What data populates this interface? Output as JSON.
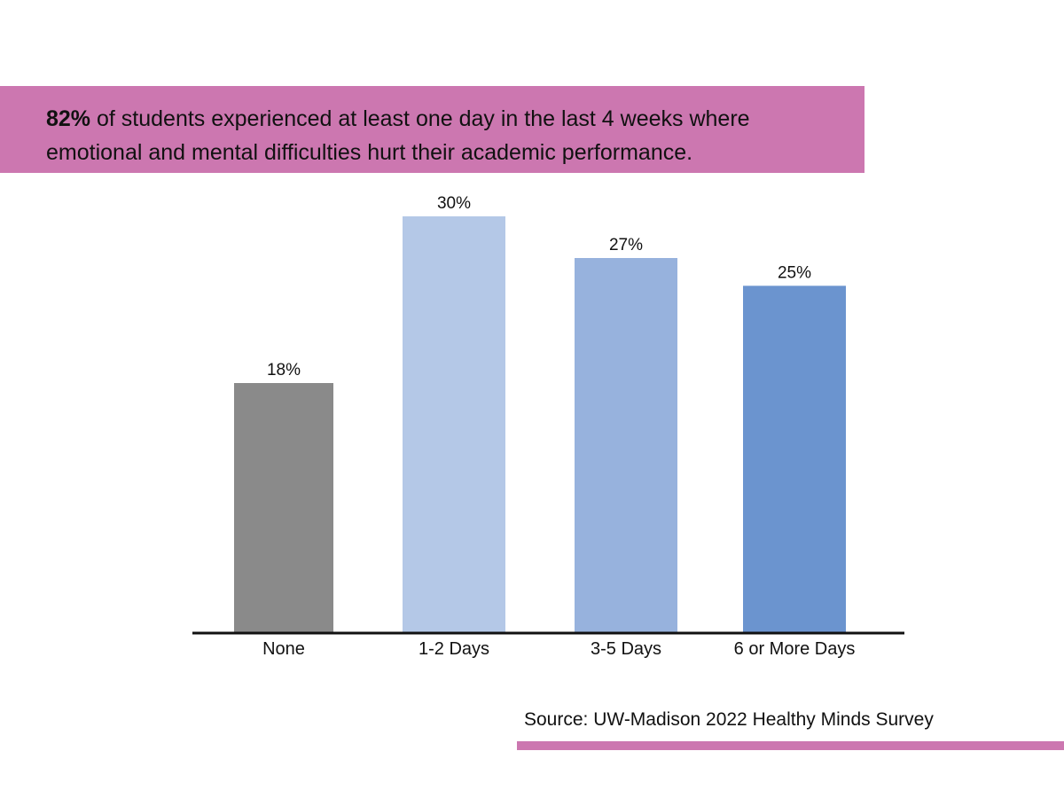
{
  "colors": {
    "accent_pink": "#cc77b0",
    "axis": "#111111",
    "text": "#111111"
  },
  "header": {
    "highlight": "82%",
    "line1_rest": " of students experienced at least one day in the last 4 weeks where",
    "line2": "emotional and mental difficulties hurt their academic performance."
  },
  "chart_data": {
    "type": "bar",
    "categories": [
      "None",
      "1-2 Days",
      "3-5 Days",
      "6 or More Days"
    ],
    "values": [
      18,
      30,
      27,
      25
    ],
    "value_labels": [
      "18%",
      "30%",
      "27%",
      "25%"
    ],
    "bar_colors": [
      "#8a8a8a",
      "#b4c8e7",
      "#97b2dd",
      "#6b94cf"
    ],
    "ylim": [
      0,
      30
    ],
    "grid": false,
    "legend": "none",
    "title": "",
    "xlabel": "",
    "ylabel": ""
  },
  "footer": {
    "source": "Source: UW-Madison 2022 Healthy Minds Survey"
  }
}
